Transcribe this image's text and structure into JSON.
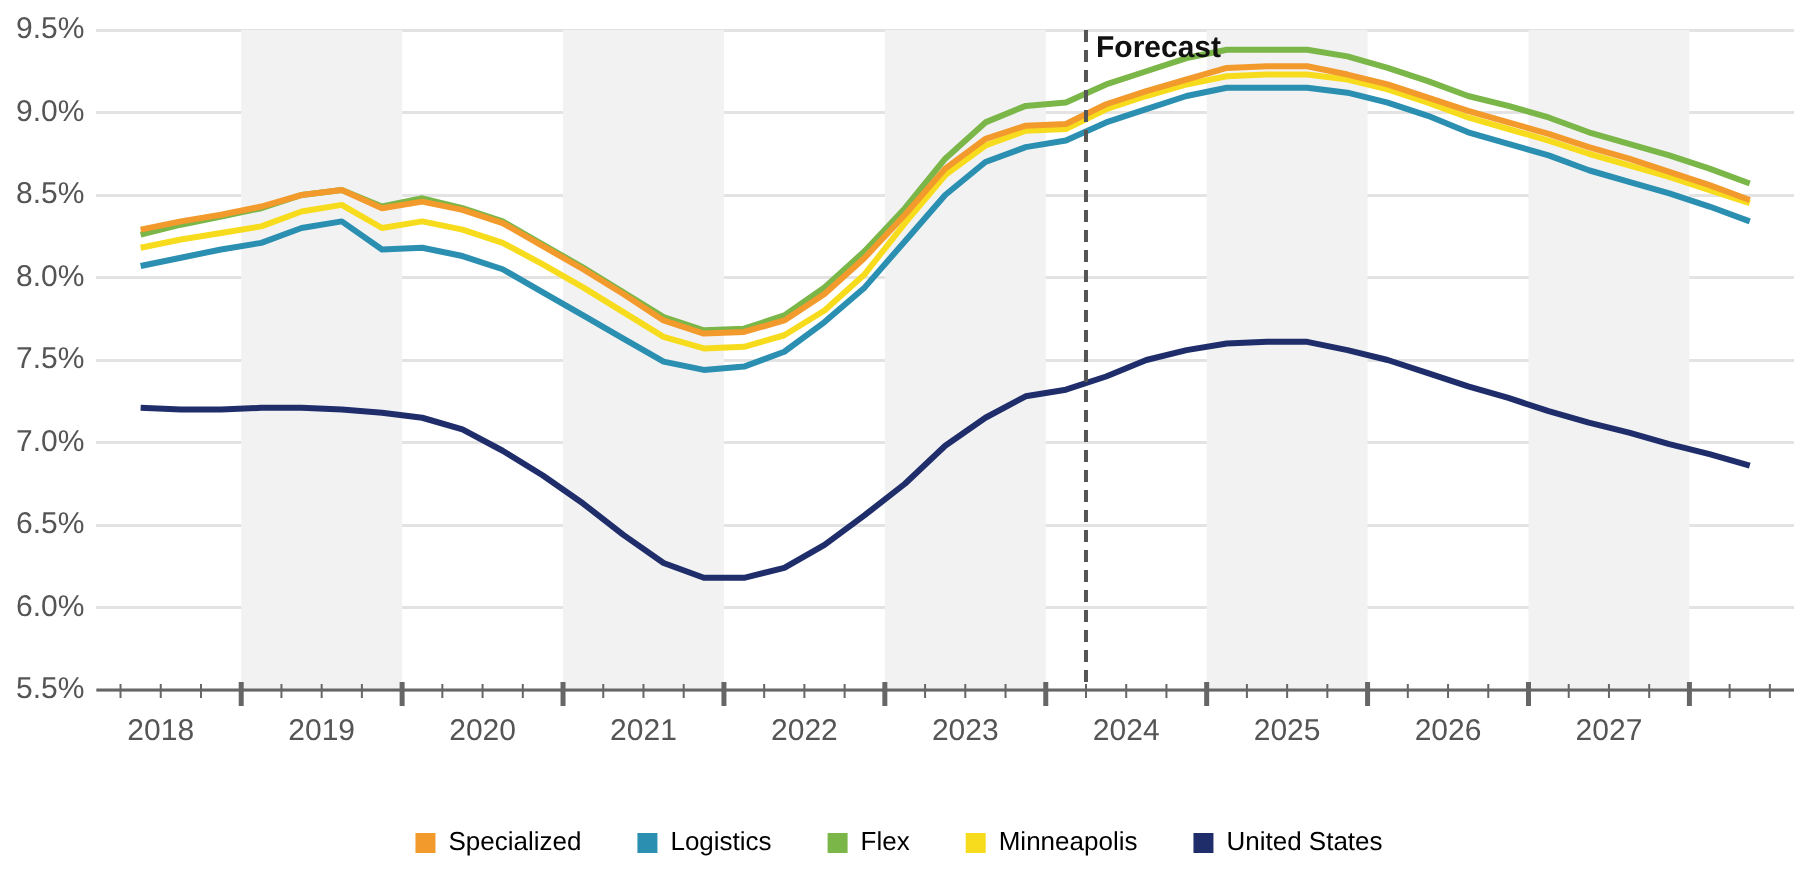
{
  "chart_data": {
    "type": "line",
    "marker": "none",
    "line_style": "solid",
    "grid": "y",
    "legend": "bottom",
    "x": [
      2018.375,
      2018.625,
      2018.875,
      2019.125,
      2019.375,
      2019.625,
      2019.875,
      2020.125,
      2020.375,
      2020.625,
      2020.875,
      2021.125,
      2021.375,
      2021.625,
      2021.875,
      2022.125,
      2022.375,
      2022.625,
      2022.875,
      2023.125,
      2023.375,
      2023.625,
      2023.875,
      2024.125,
      2024.375,
      2024.625,
      2024.875,
      2025.125,
      2025.375,
      2025.625,
      2025.875,
      2026.125,
      2026.375,
      2026.625,
      2026.875,
      2027.125,
      2027.375,
      2027.625,
      2027.875,
      2028.125,
      2028.375
    ],
    "xlim": [
      2018.1,
      2028.65
    ],
    "xticks": [
      {
        "value": 2018.25,
        "label": null
      },
      {
        "value": 2018.5,
        "label": "2018"
      },
      {
        "value": 2018.75,
        "label": null
      },
      {
        "value": 2019,
        "label": null
      },
      {
        "value": 2019.25,
        "label": null
      },
      {
        "value": 2019.5,
        "label": "2019"
      },
      {
        "value": 2019.75,
        "label": null
      },
      {
        "value": 2020,
        "label": null
      },
      {
        "value": 2020.25,
        "label": null
      },
      {
        "value": 2020.5,
        "label": "2020"
      },
      {
        "value": 2020.75,
        "label": null
      },
      {
        "value": 2021,
        "label": null
      },
      {
        "value": 2021.25,
        "label": null
      },
      {
        "value": 2021.5,
        "label": "2021"
      },
      {
        "value": 2021.75,
        "label": null
      },
      {
        "value": 2022,
        "label": null
      },
      {
        "value": 2022.25,
        "label": null
      },
      {
        "value": 2022.5,
        "label": "2022"
      },
      {
        "value": 2022.75,
        "label": null
      },
      {
        "value": 2023,
        "label": null
      },
      {
        "value": 2023.25,
        "label": null
      },
      {
        "value": 2023.5,
        "label": "2023"
      },
      {
        "value": 2023.75,
        "label": null
      },
      {
        "value": 2024,
        "label": null
      },
      {
        "value": 2024.25,
        "label": null
      },
      {
        "value": 2024.5,
        "label": "2024"
      },
      {
        "value": 2024.75,
        "label": null
      },
      {
        "value": 2025,
        "label": null
      },
      {
        "value": 2025.25,
        "label": null
      },
      {
        "value": 2025.5,
        "label": "2025"
      },
      {
        "value": 2025.75,
        "label": null
      },
      {
        "value": 2026,
        "label": null
      },
      {
        "value": 2026.25,
        "label": null
      },
      {
        "value": 2026.5,
        "label": "2026"
      },
      {
        "value": 2026.75,
        "label": null
      },
      {
        "value": 2027,
        "label": null
      },
      {
        "value": 2027.25,
        "label": null
      },
      {
        "value": 2027.5,
        "label": "2027"
      },
      {
        "value": 2027.75,
        "label": null
      },
      {
        "value": 2028,
        "label": null
      },
      {
        "value": 2028.25,
        "label": null
      },
      {
        "value": 2028.5,
        "label": null
      }
    ],
    "ylim": [
      5.5,
      9.5
    ],
    "yticks": [
      {
        "value": 5.5,
        "label": "5.5%"
      },
      {
        "value": 6,
        "label": "6.0%"
      },
      {
        "value": 6.5,
        "label": "6.5%"
      },
      {
        "value": 7,
        "label": "7.0%"
      },
      {
        "value": 7.5,
        "label": "7.5%"
      },
      {
        "value": 8,
        "label": "8.0%"
      },
      {
        "value": 8.5,
        "label": "8.5%"
      },
      {
        "value": 9,
        "label": "9.0%"
      },
      {
        "value": 9.5,
        "label": "9.5%"
      }
    ],
    "bands": [
      {
        "axis": "x",
        "from": 2019,
        "to": 2020,
        "color": "#f2f2f2"
      },
      {
        "axis": "x",
        "from": 2021,
        "to": 2022,
        "color": "#f2f2f2"
      },
      {
        "axis": "x",
        "from": 2023,
        "to": 2024,
        "color": "#f2f2f2"
      },
      {
        "axis": "x",
        "from": 2025,
        "to": 2026,
        "color": "#f2f2f2"
      },
      {
        "axis": "x",
        "from": 2027,
        "to": 2028,
        "color": "#f2f2f2"
      }
    ],
    "ref_lines": [
      {
        "axis": "x",
        "value": 2024.25,
        "label": "Forecast",
        "color": "#555555",
        "line_style": "dashed"
      }
    ],
    "series": [
      {
        "name": "Specialized",
        "color": "#f39a2d",
        "values": [
          8.29,
          8.34,
          8.38,
          8.43,
          8.5,
          8.53,
          8.42,
          8.46,
          8.41,
          8.33,
          8.19,
          8.05,
          7.9,
          7.74,
          7.66,
          7.67,
          7.74,
          7.9,
          8.12,
          8.38,
          8.66,
          8.84,
          8.92,
          8.93,
          9.05,
          9.13,
          9.2,
          9.27,
          9.28,
          9.28,
          9.23,
          9.17,
          9.09,
          9.01,
          8.94,
          8.87,
          8.79,
          8.72,
          8.64,
          8.56,
          8.47
        ]
      },
      {
        "name": "Logistics",
        "color": "#2a8fb0",
        "values": [
          8.07,
          8.12,
          8.17,
          8.21,
          8.3,
          8.34,
          8.17,
          8.18,
          8.13,
          8.05,
          7.91,
          7.77,
          7.63,
          7.49,
          7.44,
          7.46,
          7.55,
          7.73,
          7.94,
          8.22,
          8.5,
          8.7,
          8.79,
          8.83,
          8.94,
          9.02,
          9.1,
          9.15,
          9.15,
          9.15,
          9.12,
          9.06,
          8.98,
          8.88,
          8.81,
          8.74,
          8.65,
          8.58,
          8.51,
          8.43,
          8.34
        ]
      },
      {
        "name": "Flex",
        "color": "#7ab648",
        "values": [
          8.26,
          8.32,
          8.37,
          8.42,
          8.5,
          8.53,
          8.43,
          8.48,
          8.42,
          8.34,
          8.2,
          8.06,
          7.91,
          7.76,
          7.68,
          7.69,
          7.77,
          7.94,
          8.16,
          8.42,
          8.72,
          8.94,
          9.04,
          9.06,
          9.17,
          9.25,
          9.33,
          9.38,
          9.38,
          9.38,
          9.34,
          9.27,
          9.19,
          9.1,
          9.04,
          8.97,
          8.88,
          8.81,
          8.74,
          8.66,
          8.57
        ]
      },
      {
        "name": "Minneapolis",
        "color": "#f7dc1e",
        "values": [
          8.18,
          8.23,
          8.27,
          8.31,
          8.4,
          8.44,
          8.3,
          8.34,
          8.29,
          8.21,
          8.08,
          7.94,
          7.79,
          7.64,
          7.57,
          7.58,
          7.65,
          7.8,
          8.02,
          8.33,
          8.62,
          8.8,
          8.89,
          8.9,
          9.02,
          9.1,
          9.17,
          9.22,
          9.23,
          9.23,
          9.2,
          9.14,
          9.06,
          8.97,
          8.9,
          8.83,
          8.75,
          8.68,
          8.61,
          8.53,
          8.45
        ]
      },
      {
        "name": "United States",
        "color": "#1f2e6b",
        "values": [
          7.21,
          7.2,
          7.2,
          7.21,
          7.21,
          7.2,
          7.18,
          7.15,
          7.08,
          6.95,
          6.8,
          6.63,
          6.44,
          6.27,
          6.18,
          6.18,
          6.24,
          6.38,
          6.56,
          6.75,
          6.98,
          7.15,
          7.28,
          7.32,
          7.4,
          7.5,
          7.56,
          7.6,
          7.61,
          7.61,
          7.56,
          7.5,
          7.42,
          7.34,
          7.27,
          7.19,
          7.12,
          7.06,
          6.99,
          6.93,
          6.86
        ]
      }
    ]
  }
}
